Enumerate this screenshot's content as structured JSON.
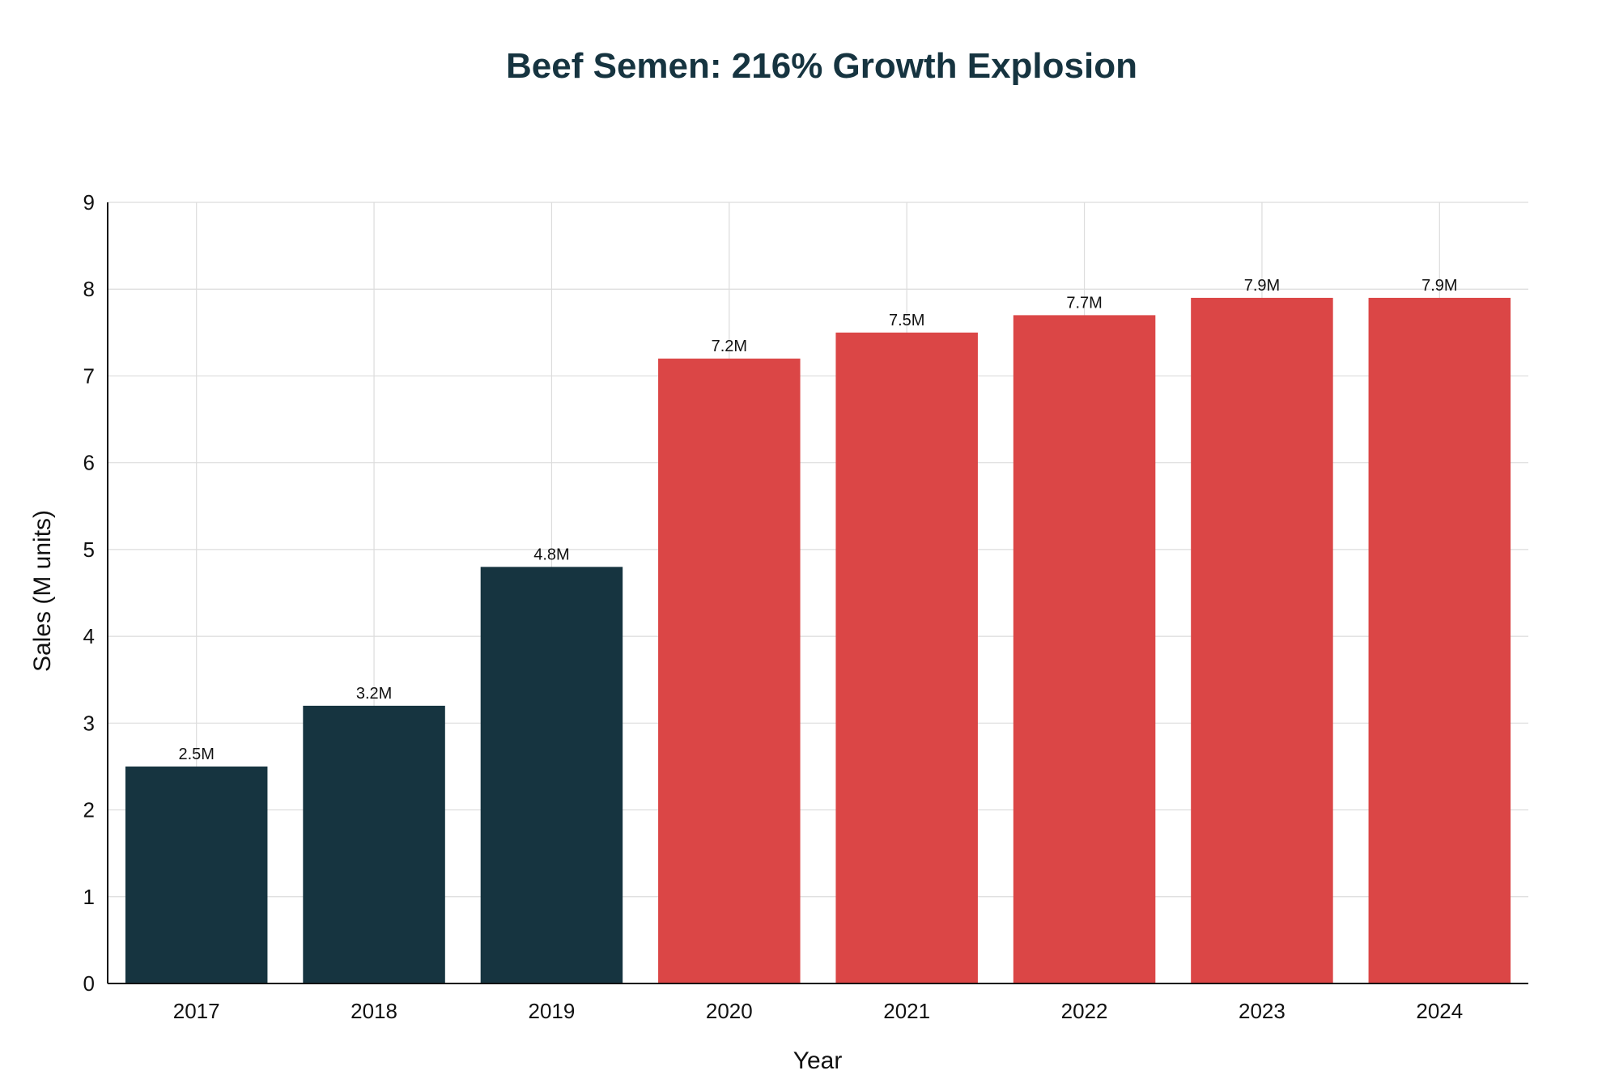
{
  "colors": {
    "pre_2020": "#163440",
    "from_2020": "#DB4646",
    "title": "#163440",
    "grid": "#dcdcdc",
    "axis": "#111111"
  },
  "chart_data": {
    "type": "bar",
    "title": "Beef Semen: 216% Growth Explosion",
    "xlabel": "Year",
    "ylabel": "Sales (M units)",
    "categories": [
      "2017",
      "2018",
      "2019",
      "2020",
      "2021",
      "2022",
      "2023",
      "2024"
    ],
    "values": [
      2.5,
      3.2,
      4.8,
      7.2,
      7.5,
      7.7,
      7.9,
      7.9
    ],
    "data_labels": [
      "2.5M",
      "3.2M",
      "4.8M",
      "7.2M",
      "7.5M",
      "7.7M",
      "7.9M",
      "7.9M"
    ],
    "bar_colors": [
      "#163440",
      "#163440",
      "#163440",
      "#DB4646",
      "#DB4646",
      "#DB4646",
      "#DB4646",
      "#DB4646"
    ],
    "ylim": [
      0,
      9
    ],
    "yticks": [
      0,
      1,
      2,
      3,
      4,
      5,
      6,
      7,
      8,
      9
    ],
    "grid": true,
    "legend": "none"
  }
}
